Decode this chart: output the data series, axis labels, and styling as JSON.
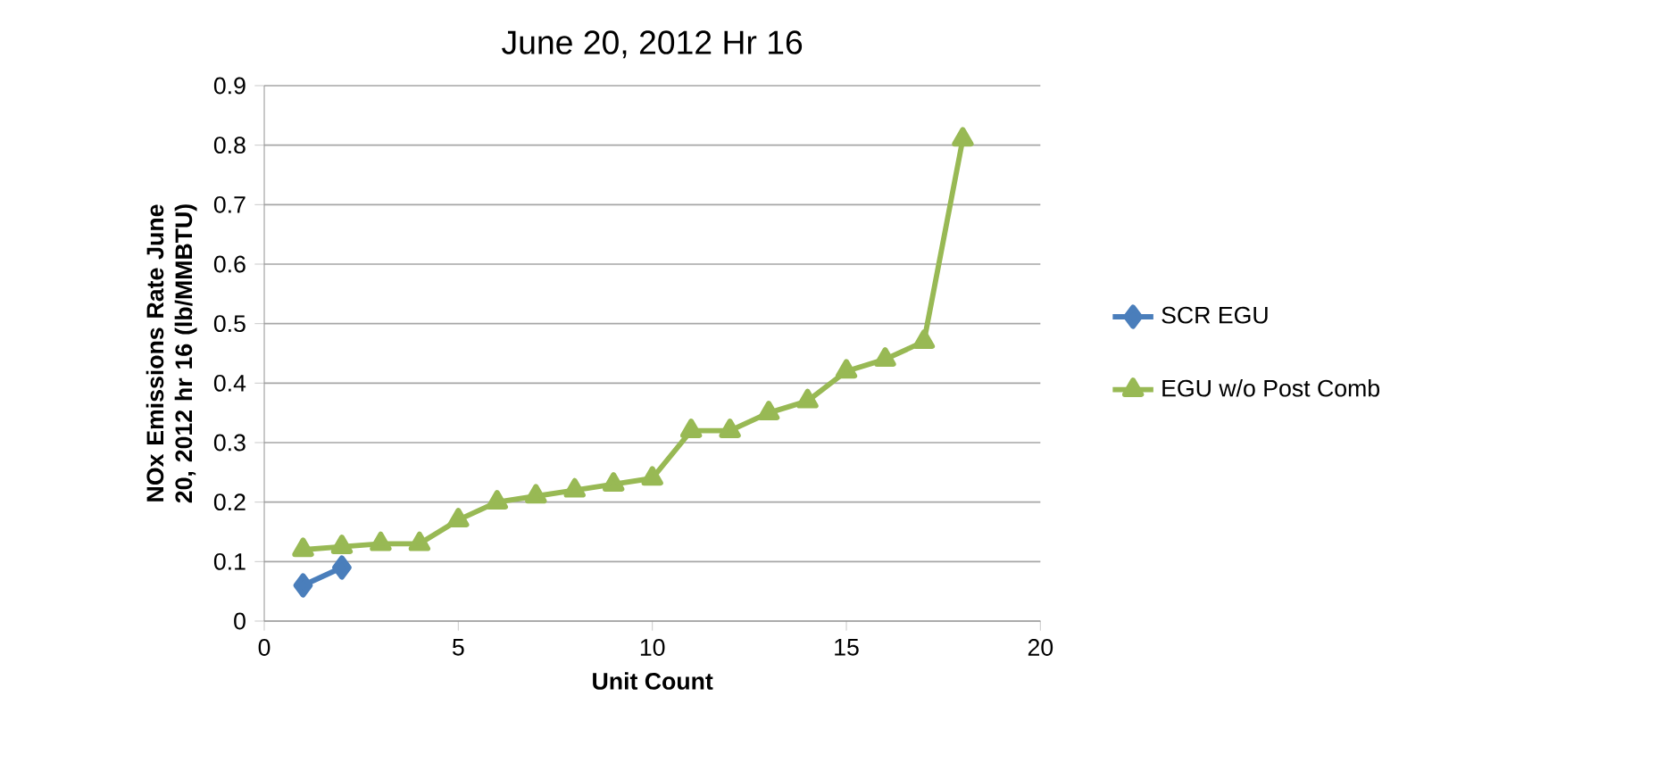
{
  "chart_data": {
    "type": "line",
    "title": "June 20, 2012 Hr 16",
    "xlabel": "Unit Count",
    "ylabel": "NOx Emissions Rate June 20, 2012 hr 16 (lb/MMBTU)",
    "series": [
      {
        "name": "SCR EGU",
        "color": "#4a7ebb",
        "marker": "diamond",
        "x": [
          1,
          2
        ],
        "values": [
          0.06,
          0.09
        ]
      },
      {
        "name": "EGU w/o Post Comb",
        "color": "#98b954",
        "marker": "triangle",
        "x": [
          1,
          2,
          3,
          4,
          5,
          6,
          7,
          8,
          9,
          10,
          11,
          12,
          13,
          14,
          15,
          16,
          17,
          18
        ],
        "values": [
          0.12,
          0.125,
          0.13,
          0.13,
          0.17,
          0.2,
          0.21,
          0.22,
          0.23,
          0.24,
          0.32,
          0.32,
          0.35,
          0.37,
          0.42,
          0.44,
          0.47,
          0.81
        ]
      }
    ],
    "xlim": [
      0,
      20
    ],
    "xticks": [
      0,
      5,
      10,
      15,
      20
    ],
    "ylim": [
      0,
      0.9
    ],
    "yticks": [
      0,
      0.1,
      0.2,
      0.3,
      0.4,
      0.5,
      0.6,
      0.7,
      0.8,
      0.9
    ],
    "grid": "y",
    "legend": "right",
    "line_style": "solid"
  }
}
